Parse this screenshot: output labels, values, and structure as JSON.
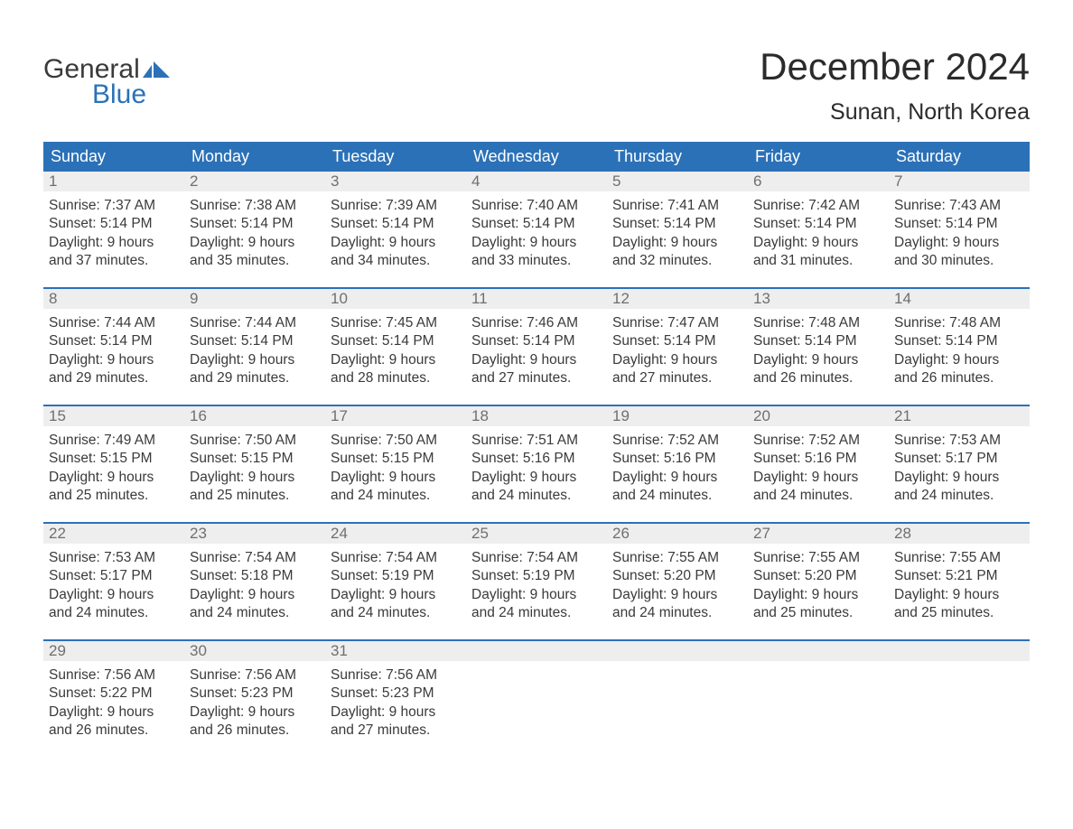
{
  "logo": {
    "word1": "General",
    "word2": "Blue"
  },
  "title": "December 2024",
  "location": "Sunan, North Korea",
  "colors": {
    "brand_blue": "#2b71b8",
    "header_text": "#ffffff",
    "daynum_bg": "#eeeeee",
    "daynum_color": "#6f6f6f",
    "body_text": "#3a3a3a",
    "page_bg": "#ffffff"
  },
  "day_headers": [
    "Sunday",
    "Monday",
    "Tuesday",
    "Wednesday",
    "Thursday",
    "Friday",
    "Saturday"
  ],
  "weeks": [
    [
      {
        "n": "1",
        "sunrise": "Sunrise: 7:37 AM",
        "sunset": "Sunset: 5:14 PM",
        "d1": "Daylight: 9 hours",
        "d2": "and 37 minutes."
      },
      {
        "n": "2",
        "sunrise": "Sunrise: 7:38 AM",
        "sunset": "Sunset: 5:14 PM",
        "d1": "Daylight: 9 hours",
        "d2": "and 35 minutes."
      },
      {
        "n": "3",
        "sunrise": "Sunrise: 7:39 AM",
        "sunset": "Sunset: 5:14 PM",
        "d1": "Daylight: 9 hours",
        "d2": "and 34 minutes."
      },
      {
        "n": "4",
        "sunrise": "Sunrise: 7:40 AM",
        "sunset": "Sunset: 5:14 PM",
        "d1": "Daylight: 9 hours",
        "d2": "and 33 minutes."
      },
      {
        "n": "5",
        "sunrise": "Sunrise: 7:41 AM",
        "sunset": "Sunset: 5:14 PM",
        "d1": "Daylight: 9 hours",
        "d2": "and 32 minutes."
      },
      {
        "n": "6",
        "sunrise": "Sunrise: 7:42 AM",
        "sunset": "Sunset: 5:14 PM",
        "d1": "Daylight: 9 hours",
        "d2": "and 31 minutes."
      },
      {
        "n": "7",
        "sunrise": "Sunrise: 7:43 AM",
        "sunset": "Sunset: 5:14 PM",
        "d1": "Daylight: 9 hours",
        "d2": "and 30 minutes."
      }
    ],
    [
      {
        "n": "8",
        "sunrise": "Sunrise: 7:44 AM",
        "sunset": "Sunset: 5:14 PM",
        "d1": "Daylight: 9 hours",
        "d2": "and 29 minutes."
      },
      {
        "n": "9",
        "sunrise": "Sunrise: 7:44 AM",
        "sunset": "Sunset: 5:14 PM",
        "d1": "Daylight: 9 hours",
        "d2": "and 29 minutes."
      },
      {
        "n": "10",
        "sunrise": "Sunrise: 7:45 AM",
        "sunset": "Sunset: 5:14 PM",
        "d1": "Daylight: 9 hours",
        "d2": "and 28 minutes."
      },
      {
        "n": "11",
        "sunrise": "Sunrise: 7:46 AM",
        "sunset": "Sunset: 5:14 PM",
        "d1": "Daylight: 9 hours",
        "d2": "and 27 minutes."
      },
      {
        "n": "12",
        "sunrise": "Sunrise: 7:47 AM",
        "sunset": "Sunset: 5:14 PM",
        "d1": "Daylight: 9 hours",
        "d2": "and 27 minutes."
      },
      {
        "n": "13",
        "sunrise": "Sunrise: 7:48 AM",
        "sunset": "Sunset: 5:14 PM",
        "d1": "Daylight: 9 hours",
        "d2": "and 26 minutes."
      },
      {
        "n": "14",
        "sunrise": "Sunrise: 7:48 AM",
        "sunset": "Sunset: 5:14 PM",
        "d1": "Daylight: 9 hours",
        "d2": "and 26 minutes."
      }
    ],
    [
      {
        "n": "15",
        "sunrise": "Sunrise: 7:49 AM",
        "sunset": "Sunset: 5:15 PM",
        "d1": "Daylight: 9 hours",
        "d2": "and 25 minutes."
      },
      {
        "n": "16",
        "sunrise": "Sunrise: 7:50 AM",
        "sunset": "Sunset: 5:15 PM",
        "d1": "Daylight: 9 hours",
        "d2": "and 25 minutes."
      },
      {
        "n": "17",
        "sunrise": "Sunrise: 7:50 AM",
        "sunset": "Sunset: 5:15 PM",
        "d1": "Daylight: 9 hours",
        "d2": "and 24 minutes."
      },
      {
        "n": "18",
        "sunrise": "Sunrise: 7:51 AM",
        "sunset": "Sunset: 5:16 PM",
        "d1": "Daylight: 9 hours",
        "d2": "and 24 minutes."
      },
      {
        "n": "19",
        "sunrise": "Sunrise: 7:52 AM",
        "sunset": "Sunset: 5:16 PM",
        "d1": "Daylight: 9 hours",
        "d2": "and 24 minutes."
      },
      {
        "n": "20",
        "sunrise": "Sunrise: 7:52 AM",
        "sunset": "Sunset: 5:16 PM",
        "d1": "Daylight: 9 hours",
        "d2": "and 24 minutes."
      },
      {
        "n": "21",
        "sunrise": "Sunrise: 7:53 AM",
        "sunset": "Sunset: 5:17 PM",
        "d1": "Daylight: 9 hours",
        "d2": "and 24 minutes."
      }
    ],
    [
      {
        "n": "22",
        "sunrise": "Sunrise: 7:53 AM",
        "sunset": "Sunset: 5:17 PM",
        "d1": "Daylight: 9 hours",
        "d2": "and 24 minutes."
      },
      {
        "n": "23",
        "sunrise": "Sunrise: 7:54 AM",
        "sunset": "Sunset: 5:18 PM",
        "d1": "Daylight: 9 hours",
        "d2": "and 24 minutes."
      },
      {
        "n": "24",
        "sunrise": "Sunrise: 7:54 AM",
        "sunset": "Sunset: 5:19 PM",
        "d1": "Daylight: 9 hours",
        "d2": "and 24 minutes."
      },
      {
        "n": "25",
        "sunrise": "Sunrise: 7:54 AM",
        "sunset": "Sunset: 5:19 PM",
        "d1": "Daylight: 9 hours",
        "d2": "and 24 minutes."
      },
      {
        "n": "26",
        "sunrise": "Sunrise: 7:55 AM",
        "sunset": "Sunset: 5:20 PM",
        "d1": "Daylight: 9 hours",
        "d2": "and 24 minutes."
      },
      {
        "n": "27",
        "sunrise": "Sunrise: 7:55 AM",
        "sunset": "Sunset: 5:20 PM",
        "d1": "Daylight: 9 hours",
        "d2": "and 25 minutes."
      },
      {
        "n": "28",
        "sunrise": "Sunrise: 7:55 AM",
        "sunset": "Sunset: 5:21 PM",
        "d1": "Daylight: 9 hours",
        "d2": "and 25 minutes."
      }
    ],
    [
      {
        "n": "29",
        "sunrise": "Sunrise: 7:56 AM",
        "sunset": "Sunset: 5:22 PM",
        "d1": "Daylight: 9 hours",
        "d2": "and 26 minutes."
      },
      {
        "n": "30",
        "sunrise": "Sunrise: 7:56 AM",
        "sunset": "Sunset: 5:23 PM",
        "d1": "Daylight: 9 hours",
        "d2": "and 26 minutes."
      },
      {
        "n": "31",
        "sunrise": "Sunrise: 7:56 AM",
        "sunset": "Sunset: 5:23 PM",
        "d1": "Daylight: 9 hours",
        "d2": "and 27 minutes."
      },
      {
        "empty": true
      },
      {
        "empty": true
      },
      {
        "empty": true
      },
      {
        "empty": true
      }
    ]
  ]
}
